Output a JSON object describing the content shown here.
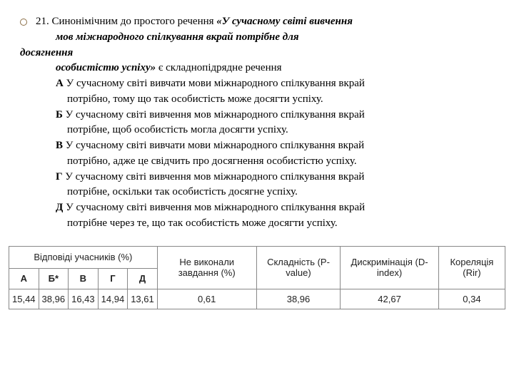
{
  "question": {
    "number": "21.",
    "intro": "Синонімічним до простого речення ",
    "quote_open": "«У сучасному світі вивчення",
    "quote_line2": "мов міжнародного спілкування вкрай потрібне для",
    "dosyag": "досягнення",
    "quote_line3": "особистістю успіху»",
    "tail": " є складнопідрядне речення"
  },
  "options": {
    "A": {
      "label": "А",
      "line1": "У сучасному світі вивчати мови міжнародного спілкування вкрай",
      "line2": "потрібно, тому що так особистість може досягти успіху."
    },
    "B": {
      "label": "Б",
      "line1": "У сучасному світі вивчення мов міжнародного спілкування вкрай",
      "line2": "потрібне, щоб особистість могла досягти успіху."
    },
    "V": {
      "label": "В",
      "line1": "У сучасному світі вивчати мови міжнародного спілкування вкрай",
      "line2": "потрібно, адже це свідчить про досягнення особистістю успіху."
    },
    "G": {
      "label": "Г",
      "line1": "У сучасному світі вивчення мов міжнародного спілкування вкрай",
      "line2": "потрібне, оскільки так особистість досягне успіху."
    },
    "D": {
      "label": "Д",
      "line1": "У сучасному світі вивчення мов міжнародного спілкування вкрай",
      "line2": "потрібне через те, що так особистість може досягти успіху."
    }
  },
  "table": {
    "headers": {
      "group": "Відповіді учасників (%)",
      "cols": [
        "А",
        "Б*",
        "В",
        "Г",
        "Д"
      ],
      "nv": "Не виконали завдання (%)",
      "sk": "Складність (P-value)",
      "di": "Дискримінація (D-index)",
      "ko": "Кореляція (Rir)"
    },
    "row": {
      "A": "15,44",
      "B": "38,96",
      "V": "16,43",
      "G": "14,94",
      "D": "13,61",
      "nv": "0,61",
      "sk": "38,96",
      "di": "42,67",
      "ko": "0,34"
    }
  }
}
